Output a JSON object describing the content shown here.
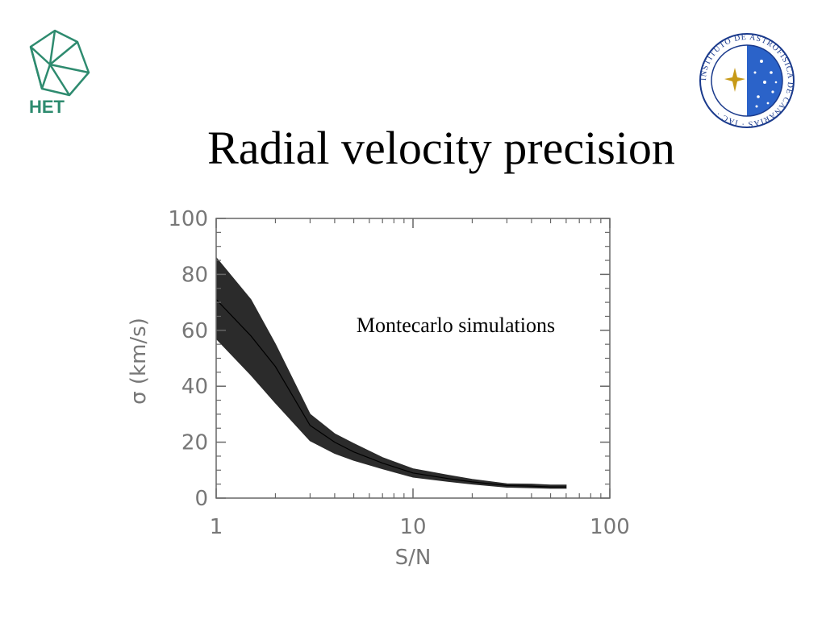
{
  "slide": {
    "title": "Radial velocity precision",
    "logos": [
      {
        "name": "het-logo",
        "text": "HET",
        "color": "#2e8b6f"
      },
      {
        "name": "iac-logo",
        "text": "INSTITUTO DE ASTROFISICA DE CANARIAS · IAC ·",
        "color": "#1a3a8c"
      }
    ]
  },
  "chart_data": {
    "type": "area",
    "title": "",
    "xlabel": "S/N",
    "ylabel": "σ (km/s)",
    "xscale": "log",
    "xlim": [
      1,
      100
    ],
    "ylim": [
      0,
      100
    ],
    "xticks": [
      1,
      10,
      100
    ],
    "xtick_labels": [
      "1",
      "10",
      "100"
    ],
    "yticks": [
      0,
      20,
      40,
      60,
      80,
      100
    ],
    "ytick_labels": [
      "0",
      "20",
      "40",
      "60",
      "80",
      "100"
    ],
    "annotation": "Montecarlo simulations",
    "band_color": "#2b2b2b",
    "series": [
      {
        "x": [
          1,
          1.5,
          2,
          3,
          4,
          5,
          7,
          10,
          15,
          20,
          30,
          40,
          50,
          60
        ],
        "values": [
          71,
          58,
          47,
          26,
          20,
          16.5,
          12.5,
          9,
          7,
          5.8,
          4.5,
          4.3,
          4,
          4
        ],
        "lower": [
          57,
          44,
          34,
          20.5,
          16,
          13.5,
          10.5,
          7.5,
          6,
          5,
          3.9,
          3.7,
          3.5,
          3.5
        ],
        "upper": [
          86,
          71,
          55,
          30,
          23,
          19.5,
          14.5,
          10.5,
          8.2,
          6.7,
          5.1,
          5,
          4.7,
          4.7
        ]
      }
    ]
  }
}
